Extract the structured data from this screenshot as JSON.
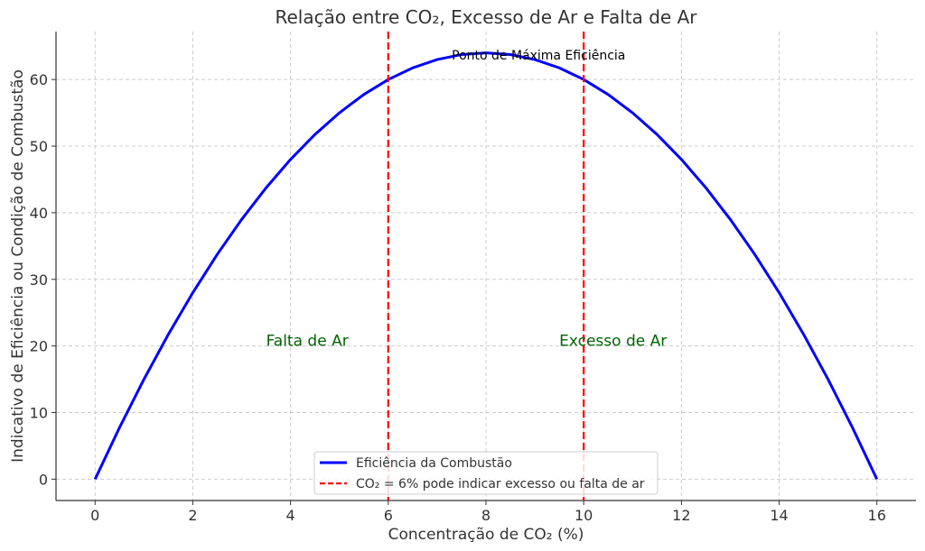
{
  "chart_data": {
    "type": "line",
    "title": "Relação entre CO₂, Excesso de Ar e Falta de Ar",
    "x_label": "Concentração de CO₂ (%)",
    "y_label": "Indicativo de Eficiência ou Condição de Combustão",
    "x": [
      0,
      0.5,
      1,
      1.5,
      2,
      2.5,
      3,
      3.5,
      4,
      4.5,
      5,
      5.5,
      6,
      6.5,
      7,
      7.5,
      8,
      8.5,
      9,
      9.5,
      10,
      10.5,
      11,
      11.5,
      12,
      12.5,
      13,
      13.5,
      14,
      14.5,
      15,
      15.5,
      16
    ],
    "series": [
      {
        "name": "Eficiência da Combustão",
        "color": "#0000ff",
        "values": [
          0,
          7.75,
          15,
          21.75,
          28,
          33.75,
          39,
          43.75,
          48,
          51.75,
          55,
          57.75,
          60,
          61.75,
          63,
          63.75,
          64,
          63.75,
          63,
          61.75,
          60,
          57.75,
          55,
          51.75,
          48,
          43.75,
          39,
          33.75,
          28,
          21.75,
          15,
          7.75,
          0
        ]
      }
    ],
    "vlines": {
      "name": "CO₂ = 6% pode indicar excesso ou falta de ar",
      "color": "#ff0000",
      "x": [
        6,
        10
      ]
    },
    "annotations": [
      {
        "text": "Ponto de Máxima Eficiência",
        "x": 7.3,
        "y": 63,
        "color": "#000000"
      },
      {
        "text": "Falta de Ar",
        "x": 3.5,
        "y": 20,
        "color": "#006400"
      },
      {
        "text": "Excesso de Ar",
        "x": 9.5,
        "y": 20,
        "color": "#006400"
      }
    ],
    "xlim": [
      -0.8,
      16.8
    ],
    "xticks": [
      0,
      2,
      4,
      6,
      8,
      10,
      12,
      14,
      16
    ],
    "ylim": [
      -3.2,
      67.2
    ],
    "yticks": [
      0,
      10,
      20,
      30,
      40,
      50,
      60
    ],
    "grid": true,
    "legend": "lower center"
  }
}
